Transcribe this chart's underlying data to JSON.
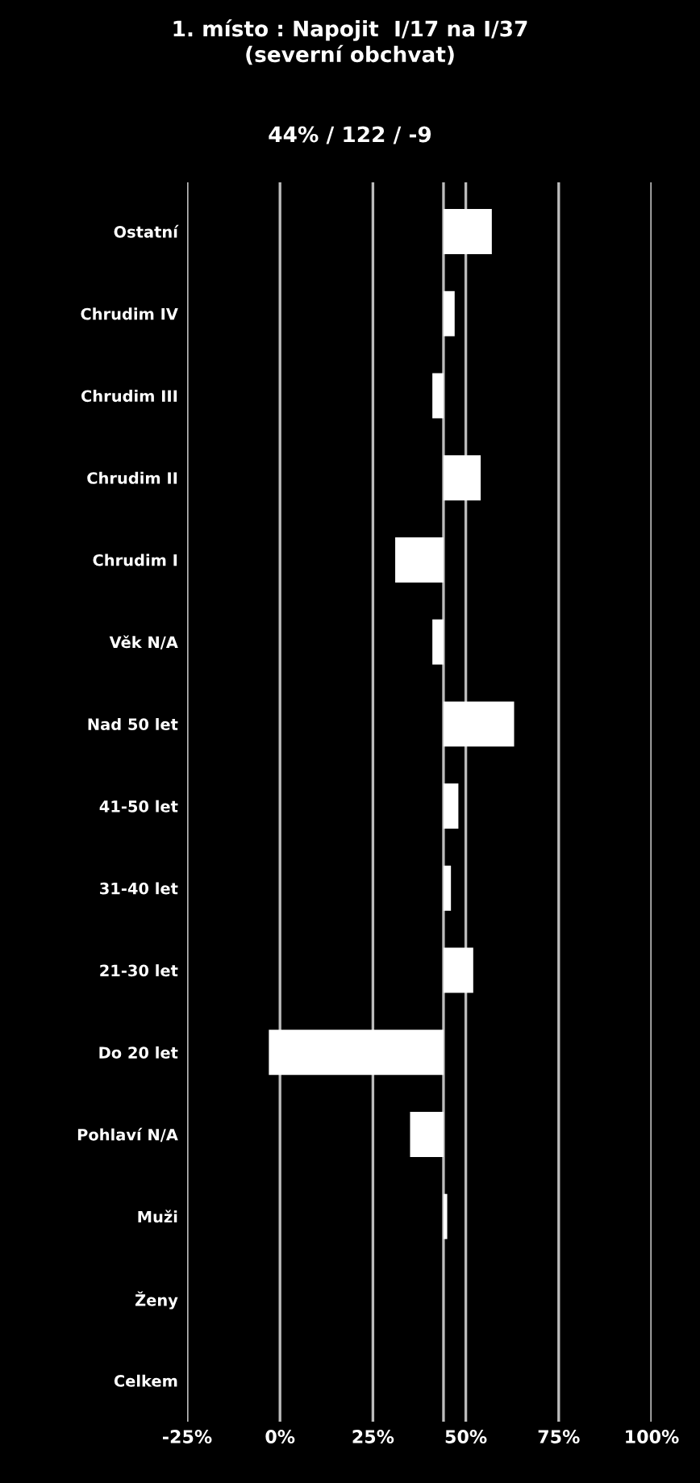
{
  "chart_data": {
    "type": "bar",
    "orientation": "horizontal",
    "title": "1. místo : Napojit  I/17 na I/37\n(severní obchvat)",
    "subtitle": "44% / 122 / -9",
    "categories": [
      "Ostatní",
      "Chrudim IV",
      "Chrudim III",
      "Chrudim II",
      "Chrudim I",
      "Věk N/A",
      "Nad 50 let",
      "41-50 let",
      "31-40 let",
      "21-30 let",
      "Do 20 let",
      "Pohlaví N/A",
      "Muži",
      "Ženy",
      "Celkem"
    ],
    "values": [
      13,
      3,
      -3,
      10,
      -13,
      -3,
      19,
      4,
      2,
      8,
      -47,
      -9,
      1,
      null,
      null
    ],
    "base": [
      44,
      44,
      44,
      44,
      44,
      44,
      44,
      44,
      44,
      44,
      44,
      44,
      44,
      null,
      null
    ],
    "color": "#ffffff",
    "xlim": [
      -25,
      100
    ],
    "xticks": [
      {
        "value": -25,
        "label": "-25%"
      },
      {
        "value": 0,
        "label": "0%"
      },
      {
        "value": 25,
        "label": "25%"
      },
      {
        "value": 50,
        "label": "50%"
      },
      {
        "value": 75,
        "label": "75%"
      },
      {
        "value": 100,
        "label": "100%"
      }
    ],
    "ref_lines": [
      {
        "axis": "x",
        "value": 44,
        "color": "#bbbbbb"
      }
    ],
    "grid": "x"
  }
}
